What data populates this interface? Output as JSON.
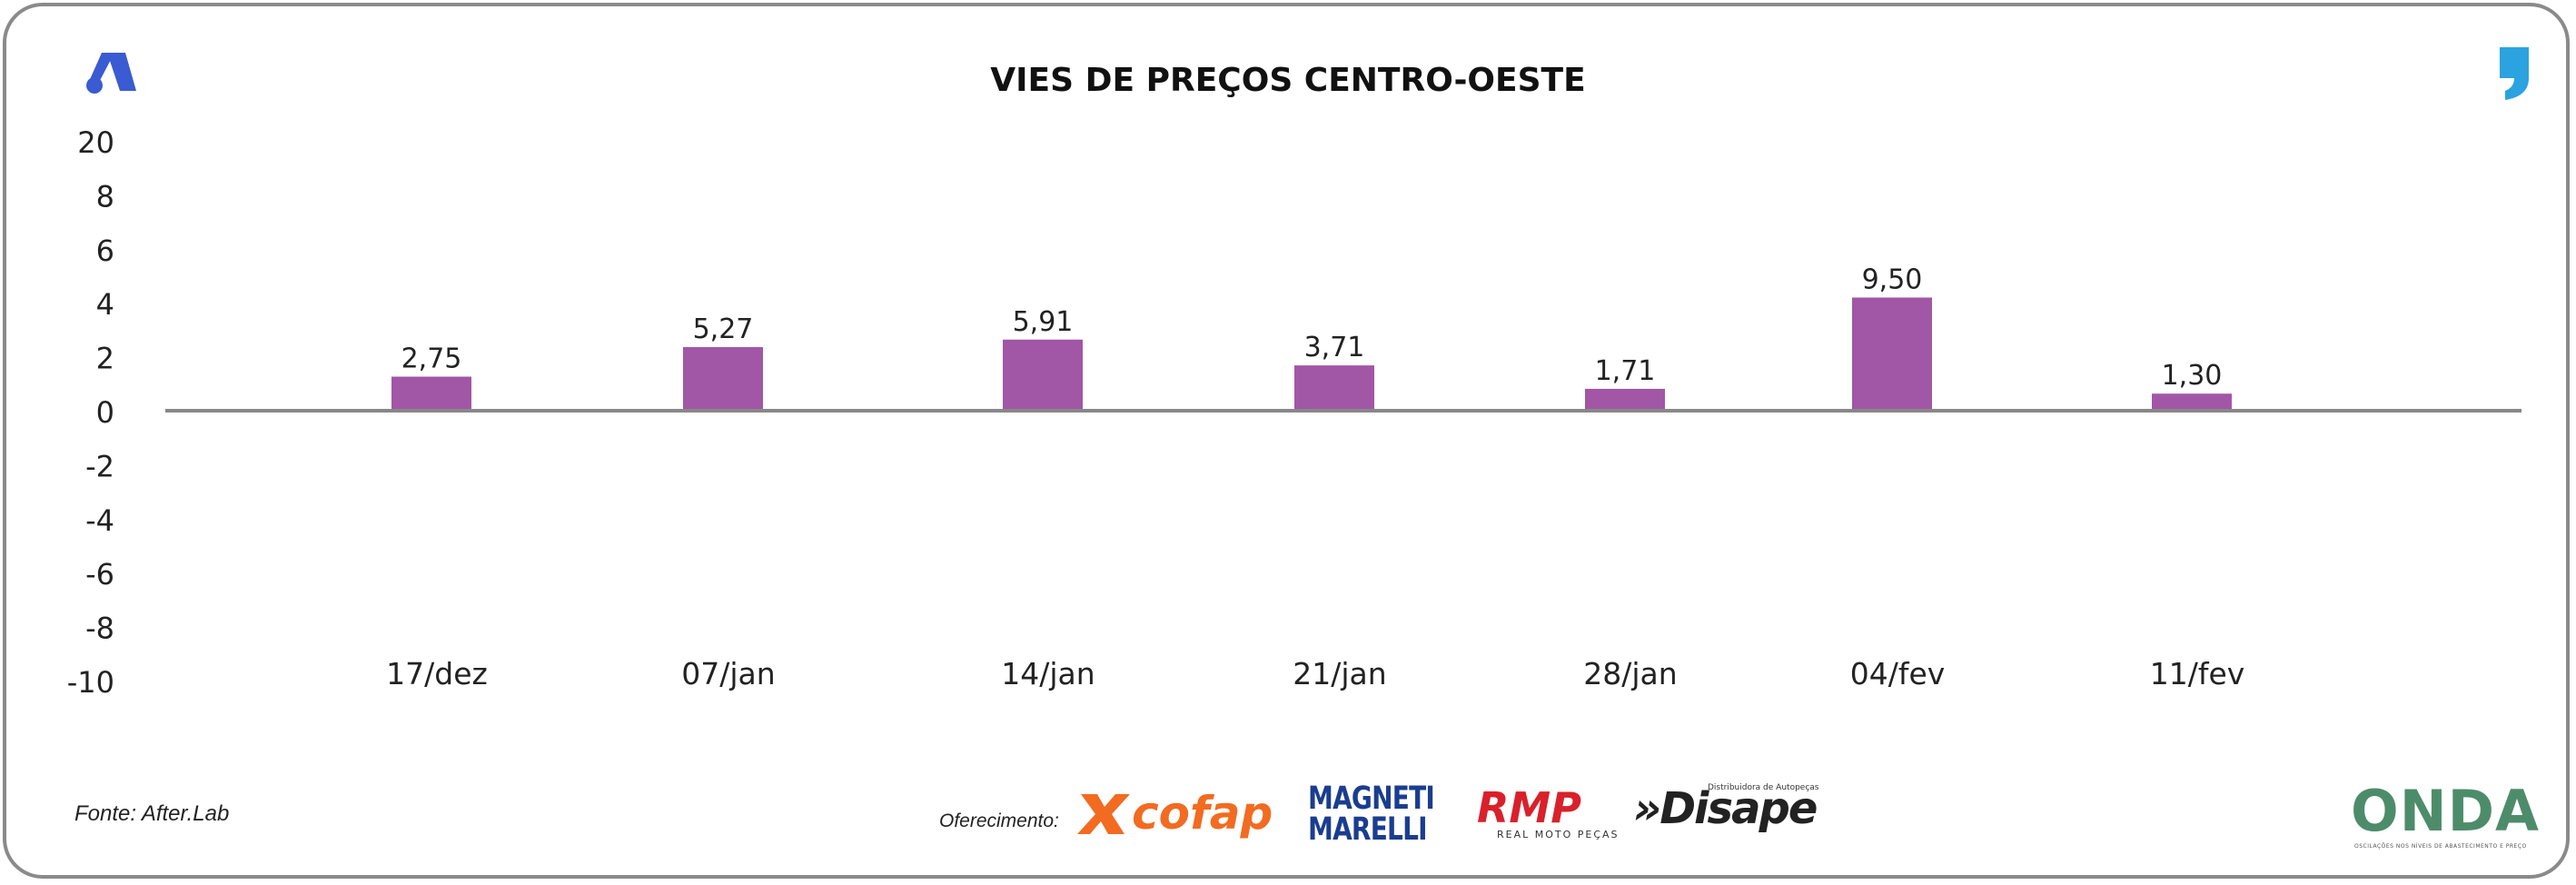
{
  "title": "VIES DE PREÇOS CENTRO-OESTE",
  "source": "Fonte: After.Lab",
  "sponsor_label": "Oferecimento:",
  "sponsors": [
    {
      "name": "cofap",
      "color": "#f26b21"
    },
    {
      "name": "MAGNETI MARELLI",
      "line1": "MAGNETI",
      "line2": "MARELLI",
      "color": "#1a3d8f"
    },
    {
      "name": "RMP",
      "sub": "REAL MOTO PEÇAS",
      "color": "#d9202b"
    },
    {
      "name": "Disape",
      "sub": "Distribuidora de Autopeças",
      "color": "#222222"
    }
  ],
  "brand": {
    "name": "ONDA",
    "tagline": "OSCILAÇÕES NOS NÍVEIS DE ABASTECIMENTO E PREÇO",
    "color": "#4d8c6a"
  },
  "colors": {
    "bar": "#a256a6",
    "axis": "#888888",
    "logo_left": "#3a5bd1",
    "logo_right": "#2ba3e0"
  },
  "icons": {
    "left": "brand-a-logo-icon",
    "right": "quote-comma-icon"
  },
  "chart_data": {
    "type": "bar",
    "title": "VIES DE PREÇOS CENTRO-OESTE",
    "categories": [
      "17/dez",
      "07/jan",
      "14/jan",
      "21/jan",
      "28/jan",
      "04/fev",
      "11/fev"
    ],
    "values": [
      2.75,
      5.27,
      5.91,
      3.71,
      1.71,
      9.5,
      1.3
    ],
    "value_labels": [
      "2,75",
      "5,27",
      "5,91",
      "3,71",
      "1,71",
      "9,50",
      "1,30"
    ],
    "yticks": [
      "20",
      "8",
      "6",
      "4",
      "2",
      "0",
      "-2",
      "-4",
      "-6",
      "-8",
      "-10"
    ],
    "ylim": [
      -10,
      20
    ],
    "grid": false,
    "legend": "none",
    "xlabel": "",
    "ylabel": ""
  }
}
